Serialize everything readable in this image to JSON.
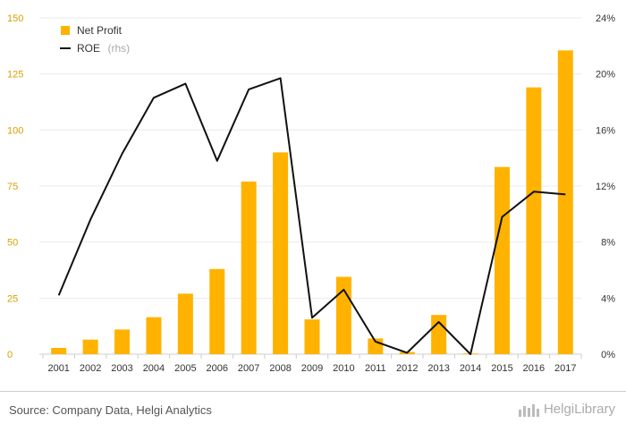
{
  "chart_data": {
    "type": "bar",
    "categories": [
      "2001",
      "2002",
      "2003",
      "2004",
      "2005",
      "2006",
      "2007",
      "2008",
      "2009",
      "2010",
      "2011",
      "2012",
      "2013",
      "2014",
      "2015",
      "2016",
      "2017"
    ],
    "series": [
      {
        "name": "Net Profit",
        "type": "bar",
        "axis": "left",
        "color": "#ffb300",
        "values": [
          2.8,
          6.5,
          11.0,
          16.5,
          27.0,
          38.0,
          77.0,
          90.0,
          15.5,
          34.5,
          7.0,
          1.0,
          17.5,
          0.3,
          83.5,
          119.0,
          135.5
        ]
      },
      {
        "name": "ROE",
        "name_suffix": "(rhs)",
        "type": "line",
        "axis": "right",
        "color": "#111111",
        "values": [
          4.2,
          9.6,
          14.3,
          18.3,
          19.3,
          13.8,
          18.9,
          19.7,
          2.6,
          4.6,
          0.9,
          0.1,
          2.3,
          0.0,
          9.8,
          11.6,
          11.4
        ]
      }
    ],
    "left_axis": {
      "ylim": [
        0,
        150
      ],
      "ticks": [
        0,
        25,
        50,
        75,
        100,
        125,
        150
      ],
      "tick_labels": [
        "0",
        "25",
        "50",
        "75",
        "100",
        "125",
        "150"
      ]
    },
    "right_axis": {
      "ylim": [
        0,
        24
      ],
      "ticks": [
        0,
        4,
        8,
        12,
        16,
        20,
        24
      ],
      "tick_labels": [
        "0%",
        "4%",
        "8%",
        "12%",
        "16%",
        "20%",
        "24%"
      ]
    },
    "grid": true,
    "legend": "top-left"
  },
  "footer": {
    "source": "Source: Company Data, Helgi Analytics",
    "brand": "HelgiLibrary"
  }
}
